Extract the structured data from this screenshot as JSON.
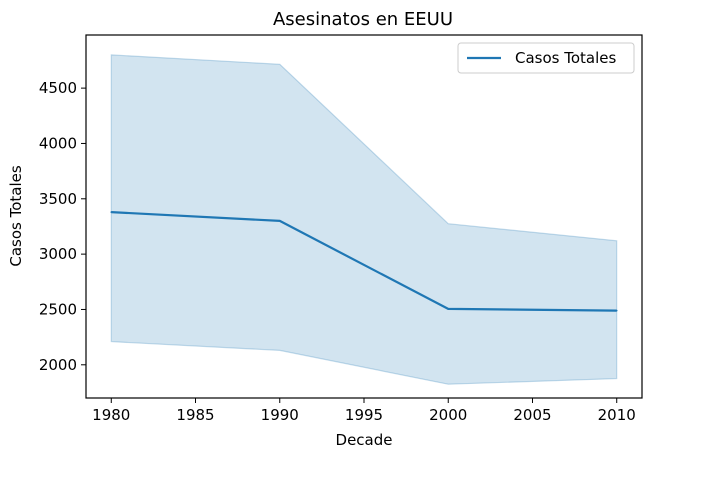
{
  "chart_data": {
    "type": "line",
    "title": "Asesinatos en EEUU",
    "xlabel": "Decade",
    "ylabel": "Casos Totales",
    "x": [
      1980,
      1990,
      2000,
      2010
    ],
    "series": [
      {
        "name": "Casos Totales",
        "values": [
          3380,
          3300,
          2505,
          2490
        ],
        "band_upper": [
          4800,
          4715,
          3275,
          3120
        ],
        "band_lower": [
          2210,
          2130,
          1825,
          1875
        ],
        "color": "#1f77b4",
        "band_color": "#1f77b4"
      }
    ],
    "xlim": [
      1978.5,
      2011.5
    ],
    "ylim": [
      1700,
      4980
    ],
    "xticks": [
      1980,
      1985,
      1990,
      1995,
      2000,
      2005,
      2010
    ],
    "yticks": [
      2000,
      2500,
      3000,
      3500,
      4000,
      4500
    ],
    "legend_position": "top-right",
    "grid": false
  }
}
